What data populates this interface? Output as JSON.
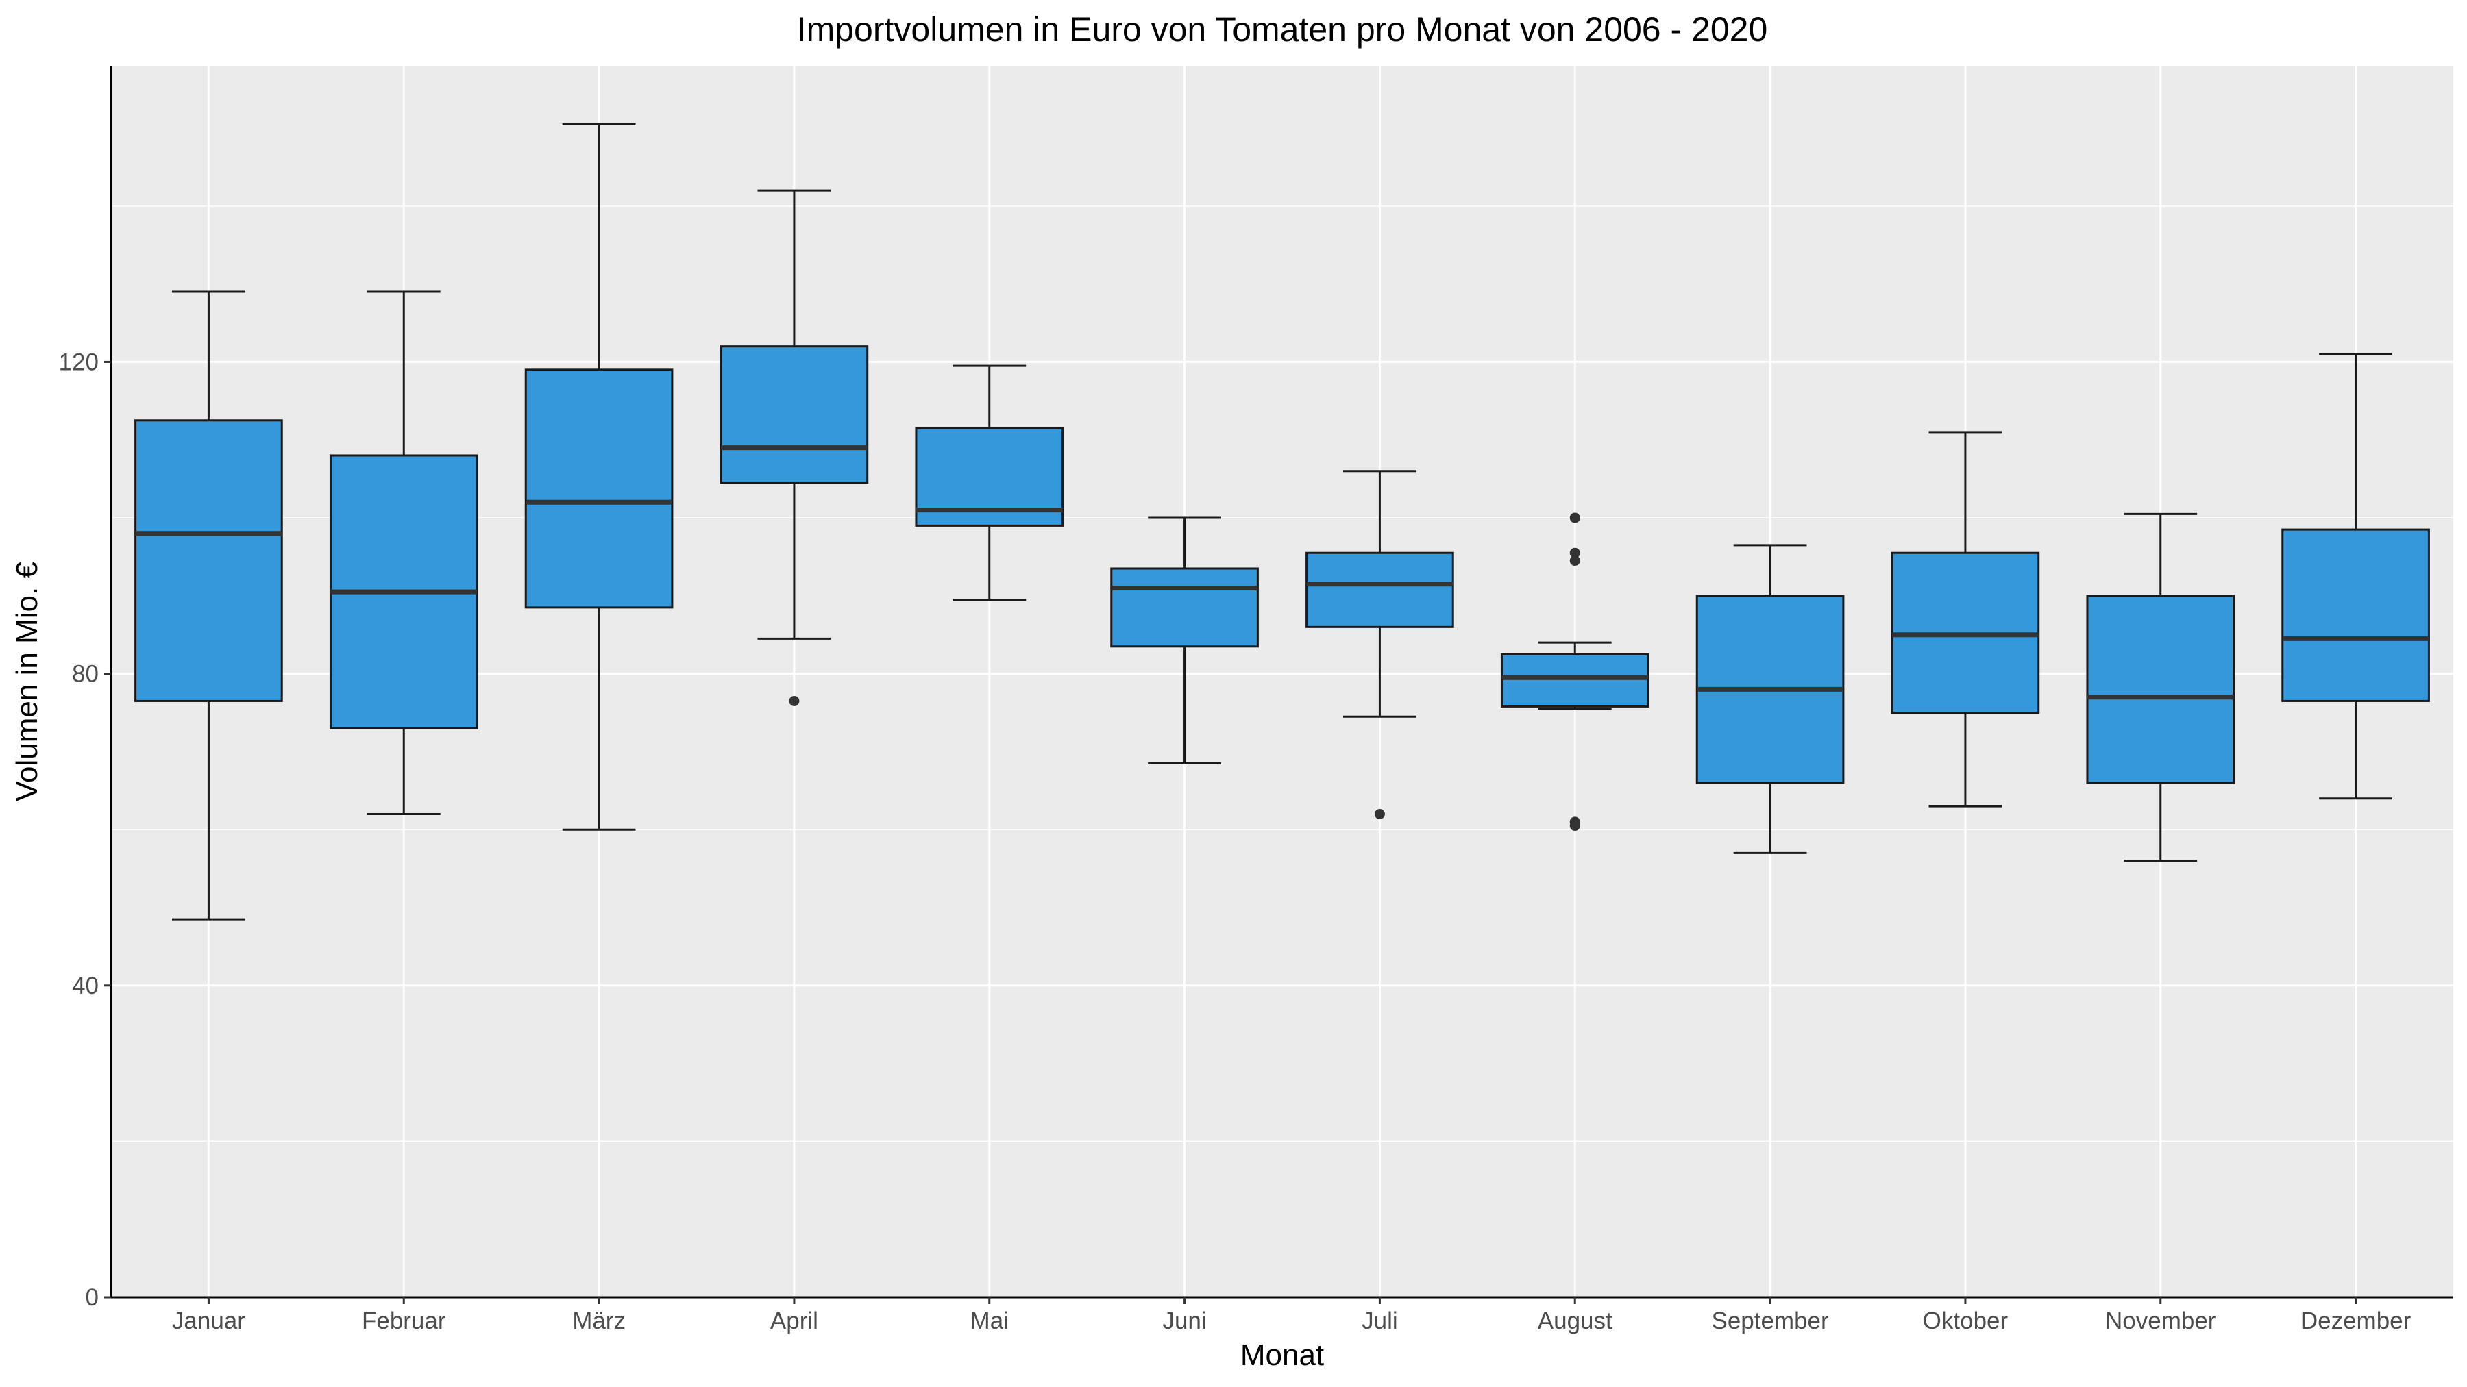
{
  "chart_data": {
    "type": "boxplot",
    "title": "Importvolumen in Euro von Tomaten pro Monat von 2006 - 2020",
    "xlabel": "Monat",
    "ylabel": "Volumen in Mio. €",
    "ylim": [
      0,
      158
    ],
    "yticks": [
      0,
      40,
      80,
      120
    ],
    "y_minor_ticks": [
      20,
      60,
      100,
      140
    ],
    "grid": true,
    "legend": "none",
    "colors": {
      "box_fill": "#3498db",
      "box_outline": "#1a1a1a",
      "median": "#333333",
      "outlier": "#333333",
      "panel_background": "#ebebeb",
      "grid": "#ffffff"
    },
    "categories": [
      "Januar",
      "Februar",
      "März",
      "April",
      "Mai",
      "Juni",
      "Juli",
      "August",
      "September",
      "Oktober",
      "November",
      "Dezember"
    ],
    "boxes": [
      {
        "category": "Januar",
        "whisker_low": 48.5,
        "q1": 76.5,
        "median": 98.0,
        "q3": 112.5,
        "whisker_high": 129.0,
        "outliers": []
      },
      {
        "category": "Februar",
        "whisker_low": 62.0,
        "q1": 73.0,
        "median": 90.5,
        "q3": 108.0,
        "whisker_high": 129.0,
        "outliers": []
      },
      {
        "category": "März",
        "whisker_low": 60.0,
        "q1": 88.5,
        "median": 102.0,
        "q3": 119.0,
        "whisker_high": 150.5,
        "outliers": []
      },
      {
        "category": "April",
        "whisker_low": 84.5,
        "q1": 104.5,
        "median": 109.0,
        "q3": 122.0,
        "whisker_high": 142.0,
        "outliers": [
          76.5
        ]
      },
      {
        "category": "Mai",
        "whisker_low": 89.5,
        "q1": 99.0,
        "median": 101.0,
        "q3": 111.5,
        "whisker_high": 119.5,
        "outliers": []
      },
      {
        "category": "Juni",
        "whisker_low": 68.5,
        "q1": 83.5,
        "median": 91.0,
        "q3": 93.5,
        "whisker_high": 100.0,
        "outliers": []
      },
      {
        "category": "Juli",
        "whisker_low": 74.5,
        "q1": 86.0,
        "median": 91.5,
        "q3": 95.5,
        "whisker_high": 106.0,
        "outliers": [
          62.0
        ]
      },
      {
        "category": "August",
        "whisker_low": 75.5,
        "q1": 75.8,
        "median": 79.5,
        "q3": 82.5,
        "whisker_high": 84.0,
        "outliers": [
          100.0,
          95.5,
          94.5,
          61.0,
          60.5
        ]
      },
      {
        "category": "September",
        "whisker_low": 57.0,
        "q1": 66.0,
        "median": 78.0,
        "q3": 90.0,
        "whisker_high": 96.5,
        "outliers": []
      },
      {
        "category": "Oktober",
        "whisker_low": 63.0,
        "q1": 75.0,
        "median": 85.0,
        "q3": 95.5,
        "whisker_high": 111.0,
        "outliers": []
      },
      {
        "category": "November",
        "whisker_low": 56.0,
        "q1": 66.0,
        "median": 77.0,
        "q3": 90.0,
        "whisker_high": 100.5,
        "outliers": []
      },
      {
        "category": "Dezember",
        "whisker_low": 64.0,
        "q1": 76.5,
        "median": 84.5,
        "q3": 98.5,
        "whisker_high": 121.0,
        "outliers": []
      }
    ]
  }
}
